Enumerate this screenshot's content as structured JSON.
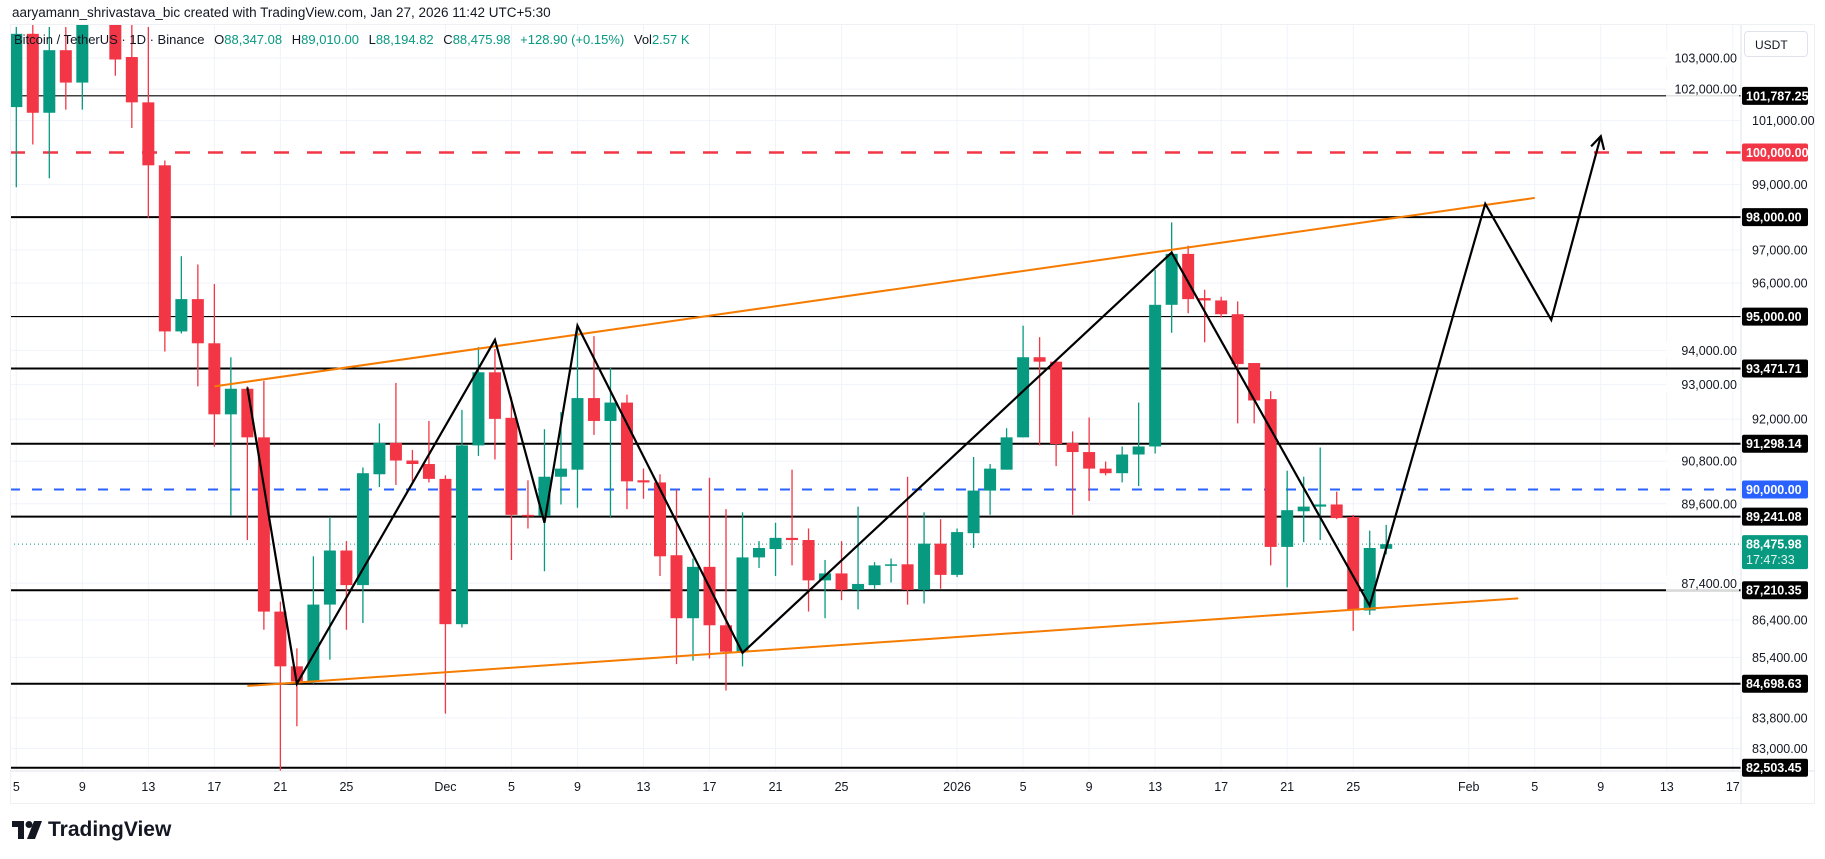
{
  "credit": "aaryamann_shrivastava_bic created with TradingView.com, Jan 27, 2026 11:42 UTC+5:30",
  "legend": {
    "symbol": "Bitcoin / TetherUS · 1D · Binance",
    "o_label": "O",
    "o": "88,347.08",
    "h_label": "H",
    "h": "89,010.00",
    "l_label": "L",
    "l": "88,194.82",
    "c_label": "C",
    "c": "88,475.98",
    "change": "+128.90 (+0.15%)",
    "vol_label": "Vol",
    "vol": "2.57 K"
  },
  "currency": "USDT",
  "logo_text": "TradingView",
  "colors": {
    "up": "#089981",
    "down": "#f23645",
    "trend": "#f57c00",
    "level": "#000000",
    "red_level": "#f23645",
    "blue_level": "#2962ff"
  },
  "chart_data": {
    "type": "candlestick",
    "y_scale": "log",
    "grid": true,
    "xlim": [
      "2025-11-05",
      "2026-02-19"
    ],
    "ylim": [
      82300,
      104200
    ],
    "candles": [
      [
        "2025-11-05",
        101430,
        104000,
        98920,
        103780
      ],
      [
        "2025-11-06",
        103780,
        104100,
        100250,
        101250
      ],
      [
        "2025-11-07",
        101250,
        104000,
        99200,
        103250
      ],
      [
        "2025-11-08",
        103250,
        104000,
        101350,
        102210
      ],
      [
        "2025-11-09",
        102210,
        105500,
        101350,
        104700
      ],
      [
        "2025-11-10",
        104700,
        106600,
        104500,
        106000
      ],
      [
        "2025-11-11",
        106000,
        106600,
        102430,
        102950
      ],
      [
        "2025-11-12",
        103030,
        105300,
        100770,
        101580
      ],
      [
        "2025-11-13",
        101580,
        104000,
        97980,
        99600
      ],
      [
        "2025-11-14",
        99600,
        99750,
        93970,
        94560
      ],
      [
        "2025-11-15",
        94560,
        96810,
        94500,
        95520
      ],
      [
        "2025-11-16",
        95520,
        96560,
        92950,
        94210
      ],
      [
        "2025-11-17",
        94210,
        95970,
        91210,
        92140
      ],
      [
        "2025-11-18",
        92140,
        93800,
        89260,
        92880
      ],
      [
        "2025-11-19",
        92880,
        92950,
        88590,
        91480
      ],
      [
        "2025-11-20",
        91480,
        93110,
        86140,
        86630
      ],
      [
        "2025-11-21",
        86630,
        86900,
        80600,
        85160
      ],
      [
        "2025-11-22",
        85160,
        85640,
        83580,
        84760
      ],
      [
        "2025-11-23",
        84760,
        88140,
        84700,
        86820
      ],
      [
        "2025-11-24",
        86820,
        89230,
        85340,
        88300
      ],
      [
        "2025-11-25",
        88300,
        88560,
        86140,
        87350
      ],
      [
        "2025-11-26",
        87350,
        90620,
        86320,
        90460
      ],
      [
        "2025-11-27",
        90430,
        91880,
        90070,
        91320
      ],
      [
        "2025-11-28",
        91320,
        93050,
        90130,
        90820
      ],
      [
        "2025-11-29",
        90820,
        91120,
        90230,
        90720
      ],
      [
        "2025-11-30",
        90720,
        91950,
        90200,
        90300
      ],
      [
        "2025-12-01",
        90300,
        90400,
        83910,
        86290
      ],
      [
        "2025-12-02",
        86290,
        92270,
        86200,
        91250
      ],
      [
        "2025-12-03",
        91250,
        94100,
        90950,
        93360
      ],
      [
        "2025-12-04",
        93360,
        94040,
        90850,
        92010
      ],
      [
        "2025-12-05",
        92040,
        92650,
        88040,
        89290
      ],
      [
        "2025-12-06",
        89290,
        90260,
        88910,
        89260
      ],
      [
        "2025-12-07",
        89260,
        91710,
        87730,
        90360
      ],
      [
        "2025-12-08",
        90360,
        92210,
        89580,
        90590
      ],
      [
        "2025-12-09",
        90560,
        94690,
        89490,
        92610
      ],
      [
        "2025-12-10",
        92610,
        94420,
        91550,
        91950
      ],
      [
        "2025-12-11",
        91950,
        93490,
        89230,
        92480
      ],
      [
        "2025-12-12",
        92480,
        92710,
        89450,
        90230
      ],
      [
        "2025-12-13",
        90260,
        90590,
        89740,
        90200
      ],
      [
        "2025-12-14",
        90200,
        90430,
        87600,
        88140
      ],
      [
        "2025-12-15",
        88170,
        90000,
        85220,
        86450
      ],
      [
        "2025-12-16",
        86450,
        88080,
        85310,
        87850
      ],
      [
        "2025-12-17",
        87850,
        90330,
        85370,
        86260
      ],
      [
        "2025-12-18",
        86260,
        89450,
        84520,
        85550
      ],
      [
        "2025-12-19",
        85550,
        89360,
        85160,
        88110
      ],
      [
        "2025-12-20",
        88110,
        88560,
        87820,
        88370
      ],
      [
        "2025-12-21",
        88340,
        89070,
        87600,
        88650
      ],
      [
        "2025-12-22",
        88650,
        90560,
        87890,
        88590
      ],
      [
        "2025-12-23",
        88590,
        88910,
        86630,
        87480
      ],
      [
        "2025-12-24",
        87480,
        88040,
        86450,
        87670
      ],
      [
        "2025-12-25",
        87670,
        88560,
        86940,
        87220
      ],
      [
        "2025-12-26",
        87220,
        89520,
        86690,
        87380
      ],
      [
        "2025-12-27",
        87350,
        87980,
        87250,
        87890
      ],
      [
        "2025-12-28",
        87890,
        88080,
        87420,
        87920
      ],
      [
        "2025-12-29",
        87920,
        90360,
        86820,
        87220
      ],
      [
        "2025-12-30",
        87220,
        89360,
        86850,
        88490
      ],
      [
        "2025-12-31",
        88490,
        89170,
        87250,
        87630
      ],
      [
        "2026-01-01",
        87630,
        88910,
        87570,
        88810
      ],
      [
        "2026-01-02",
        88780,
        90920,
        88370,
        89970
      ],
      [
        "2026-01-03",
        89970,
        90720,
        89290,
        90590
      ],
      [
        "2026-01-04",
        90560,
        91740,
        90560,
        91480
      ],
      [
        "2026-01-05",
        91480,
        94730,
        91480,
        93800
      ],
      [
        "2026-01-06",
        93800,
        94390,
        91250,
        93670
      ],
      [
        "2026-01-07",
        93670,
        93700,
        90660,
        91290
      ],
      [
        "2026-01-08",
        91320,
        91650,
        89290,
        91060
      ],
      [
        "2026-01-09",
        91060,
        92050,
        89680,
        90590
      ],
      [
        "2026-01-10",
        90590,
        90790,
        90400,
        90460
      ],
      [
        "2026-01-11",
        90460,
        91220,
        90200,
        90990
      ],
      [
        "2026-01-12",
        90990,
        92480,
        90100,
        91220
      ],
      [
        "2026-01-13",
        91220,
        96390,
        91020,
        95350
      ],
      [
        "2026-01-14",
        95350,
        97840,
        94520,
        96880
      ],
      [
        "2026-01-15",
        96880,
        97130,
        95100,
        95520
      ],
      [
        "2026-01-16",
        95550,
        95800,
        94240,
        95480
      ],
      [
        "2026-01-17",
        95480,
        95590,
        94970,
        95070
      ],
      [
        "2026-01-18",
        95070,
        95450,
        91880,
        93600
      ],
      [
        "2026-01-19",
        93630,
        93630,
        91880,
        92540
      ],
      [
        "2026-01-20",
        92580,
        92810,
        87890,
        88400
      ],
      [
        "2026-01-21",
        88400,
        90530,
        87290,
        89420
      ],
      [
        "2026-01-22",
        89390,
        90360,
        88530,
        89520
      ],
      [
        "2026-01-23",
        89520,
        91190,
        88590,
        89580
      ],
      [
        "2026-01-24",
        89580,
        89940,
        89170,
        89200
      ],
      [
        "2026-01-25",
        89230,
        89290,
        86110,
        86660
      ],
      [
        "2026-01-26",
        86660,
        88850,
        86540,
        88370
      ],
      [
        "2026-01-27",
        88347.08,
        89010.0,
        88194.82,
        88475.98
      ]
    ],
    "current_price": {
      "value": 88475.98,
      "label": "88,475.98",
      "countdown": "17:47:33"
    },
    "levels": [
      {
        "price": 101787.25,
        "label": "101,787.25",
        "style": "thin"
      },
      {
        "price": 100000,
        "label": "100,000.00",
        "style": "red-dashed"
      },
      {
        "price": 98000,
        "label": "98,000.00",
        "style": "thick"
      },
      {
        "price": 95000,
        "label": "95,000.00",
        "style": "thin"
      },
      {
        "price": 93471.71,
        "label": "93,471.71",
        "style": "thick"
      },
      {
        "price": 91298.14,
        "label": "91,298.14",
        "style": "thick"
      },
      {
        "price": 90000,
        "label": "90,000.00",
        "style": "blue-dashed"
      },
      {
        "price": 89241.08,
        "label": "89,241.08",
        "style": "thick"
      },
      {
        "price": 87210.35,
        "label": "87,210.35",
        "style": "thick"
      },
      {
        "price": 84698.63,
        "label": "84,698.63",
        "style": "thick"
      },
      {
        "price": 82503.45,
        "label": "82,503.45",
        "style": "thick"
      }
    ],
    "trendlines": [
      {
        "points": [
          [
            "2025-11-17",
            92950
          ],
          [
            "2026-02-05",
            98590
          ]
        ]
      },
      {
        "points": [
          [
            "2025-11-19",
            84640
          ],
          [
            "2026-02-04",
            86990
          ]
        ]
      }
    ],
    "zigzag": [
      [
        "2025-11-19",
        92920
      ],
      [
        "2025-11-22",
        84700
      ],
      [
        "2025-12-04",
        94310
      ],
      [
        "2025-12-07",
        89070
      ],
      [
        "2025-12-09",
        94730
      ],
      [
        "2025-12-19",
        85520
      ],
      [
        "2026-01-14",
        96920
      ],
      [
        "2026-01-26",
        86790
      ],
      [
        "2026-02-02",
        98410
      ],
      [
        "2026-02-06",
        94900
      ],
      [
        "2026-02-09",
        100510
      ]
    ],
    "y_ticks": [
      {
        "price": 103000,
        "label": "103,000.00"
      },
      {
        "price": 102000,
        "label": "102,000.00"
      },
      {
        "price": 101000,
        "label": "101,000.00"
      },
      {
        "price": 99000,
        "label": "99,000.00"
      },
      {
        "price": 97000,
        "label": "97,000.00"
      },
      {
        "price": 96000,
        "label": "96,000.00"
      },
      {
        "price": 94000,
        "label": "94,000.00"
      },
      {
        "price": 93000,
        "label": "93,000.00"
      },
      {
        "price": 92000,
        "label": "92,000.00"
      },
      {
        "price": 90800,
        "label": "90,800.00"
      },
      {
        "price": 89600,
        "label": "89,600.00"
      },
      {
        "price": 87400,
        "label": "87,400.00"
      },
      {
        "price": 86400,
        "label": "86,400.00"
      },
      {
        "price": 85400,
        "label": "85,400.00"
      },
      {
        "price": 83800,
        "label": "83,800.00"
      },
      {
        "price": 83000,
        "label": "83,000.00"
      }
    ],
    "x_ticks": [
      {
        "date": "2025-11-05",
        "label": "5"
      },
      {
        "date": "2025-11-09",
        "label": "9"
      },
      {
        "date": "2025-11-13",
        "label": "13"
      },
      {
        "date": "2025-11-17",
        "label": "17"
      },
      {
        "date": "2025-11-21",
        "label": "21"
      },
      {
        "date": "2025-11-25",
        "label": "25"
      },
      {
        "date": "2025-12-01",
        "label": "Dec"
      },
      {
        "date": "2025-12-05",
        "label": "5"
      },
      {
        "date": "2025-12-09",
        "label": "9"
      },
      {
        "date": "2025-12-13",
        "label": "13"
      },
      {
        "date": "2025-12-17",
        "label": "17"
      },
      {
        "date": "2025-12-21",
        "label": "21"
      },
      {
        "date": "2025-12-25",
        "label": "25"
      },
      {
        "date": "2026-01-01",
        "label": "2026"
      },
      {
        "date": "2026-01-05",
        "label": "5"
      },
      {
        "date": "2026-01-09",
        "label": "9"
      },
      {
        "date": "2026-01-13",
        "label": "13"
      },
      {
        "date": "2026-01-17",
        "label": "17"
      },
      {
        "date": "2026-01-21",
        "label": "21"
      },
      {
        "date": "2026-01-25",
        "label": "25"
      },
      {
        "date": "2026-02-01",
        "label": "Feb"
      },
      {
        "date": "2026-02-05",
        "label": "5"
      },
      {
        "date": "2026-02-09",
        "label": "9"
      },
      {
        "date": "2026-02-13",
        "label": "13"
      },
      {
        "date": "2026-02-17",
        "label": "17"
      }
    ]
  }
}
